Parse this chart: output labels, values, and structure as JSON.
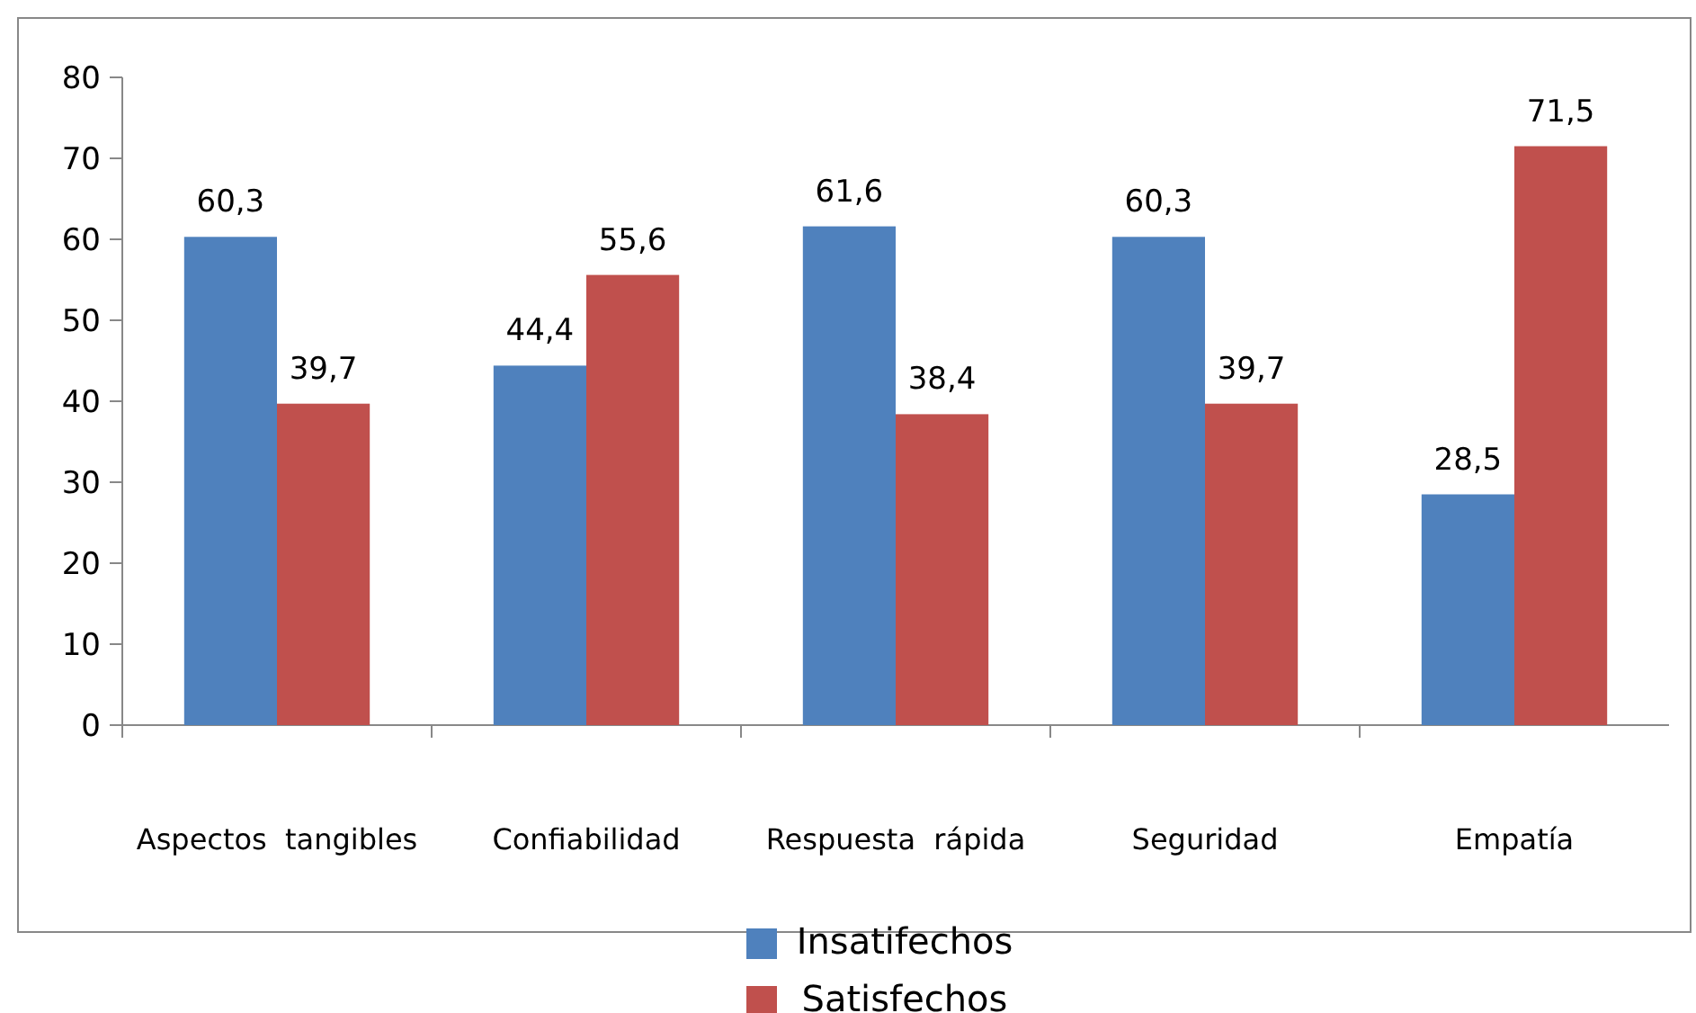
{
  "chart_data": {
    "type": "bar",
    "categories": [
      "Aspectos  tangibles",
      "Confiabilidad",
      "Respuesta  rápida",
      "Seguridad",
      "Empatía"
    ],
    "series": [
      {
        "name": "Insatifechos",
        "color": "#4f81bd",
        "values": [
          60.3,
          44.4,
          61.6,
          60.3,
          28.5
        ],
        "value_labels": [
          "60,3",
          "44,4",
          "61,6",
          "60,3",
          "28,5"
        ]
      },
      {
        "name": "Satisfechos",
        "color": "#c0504d",
        "values": [
          39.7,
          55.6,
          38.4,
          39.7,
          71.5
        ],
        "value_labels": [
          "39,7",
          "55,6",
          "38,4",
          "39,7",
          "71,5"
        ]
      }
    ],
    "ylim": [
      0,
      80
    ],
    "yticks": [
      0,
      10,
      20,
      30,
      40,
      50,
      60,
      70,
      80
    ],
    "legend": "bottom",
    "grid": false
  }
}
